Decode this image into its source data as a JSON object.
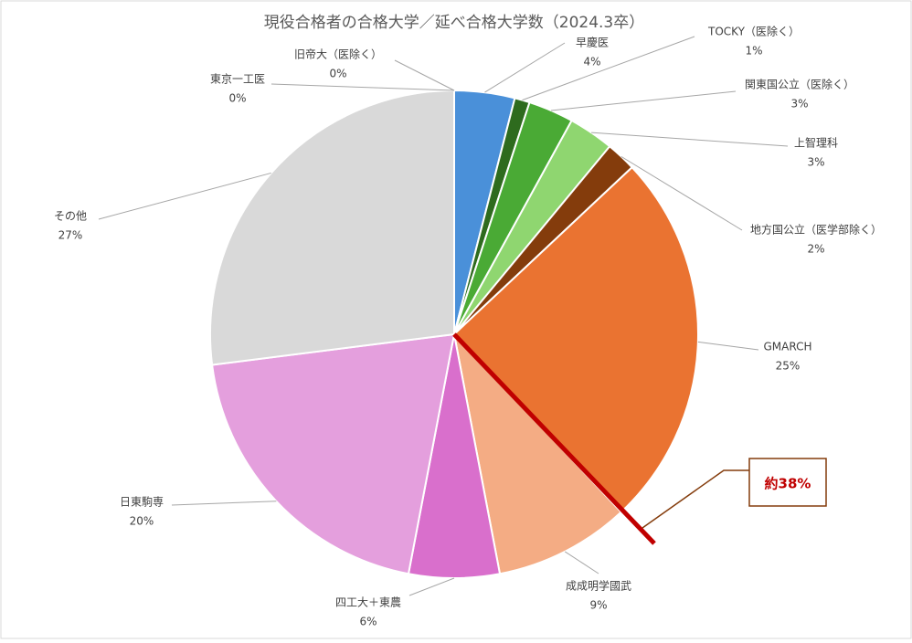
{
  "chart_data": {
    "type": "pie",
    "title": "現役合格者の合格大学／延べ合格大学数（2024.3卒）",
    "categories": [
      "旧帝大（医除く）",
      "早慶医",
      "TOCKY（医除く）",
      "関東国公立（医除く）",
      "上智理科",
      "地方国公立（医学部除く）",
      "GMARCH",
      "成成明学國武",
      "四工大＋東農",
      "日東駒専",
      "その他",
      "東京一工医"
    ],
    "values": [
      0,
      4,
      1,
      3,
      3,
      2,
      25,
      9,
      6,
      20,
      27,
      0
    ],
    "value_labels": [
      "0%",
      "4%",
      "1%",
      "3%",
      "3%",
      "2%",
      "25%",
      "9%",
      "6%",
      "20%",
      "27%",
      "0%"
    ],
    "colors": [
      "#1f4e79",
      "#4a90d9",
      "#2e6b1e",
      "#4aaa35",
      "#8fd670",
      "#843c0c",
      "#ea7331",
      "#f4ac84",
      "#d96fcc",
      "#e49fdd",
      "#d9d9d9",
      "#a6a6a6"
    ],
    "annotation": "約38%"
  }
}
